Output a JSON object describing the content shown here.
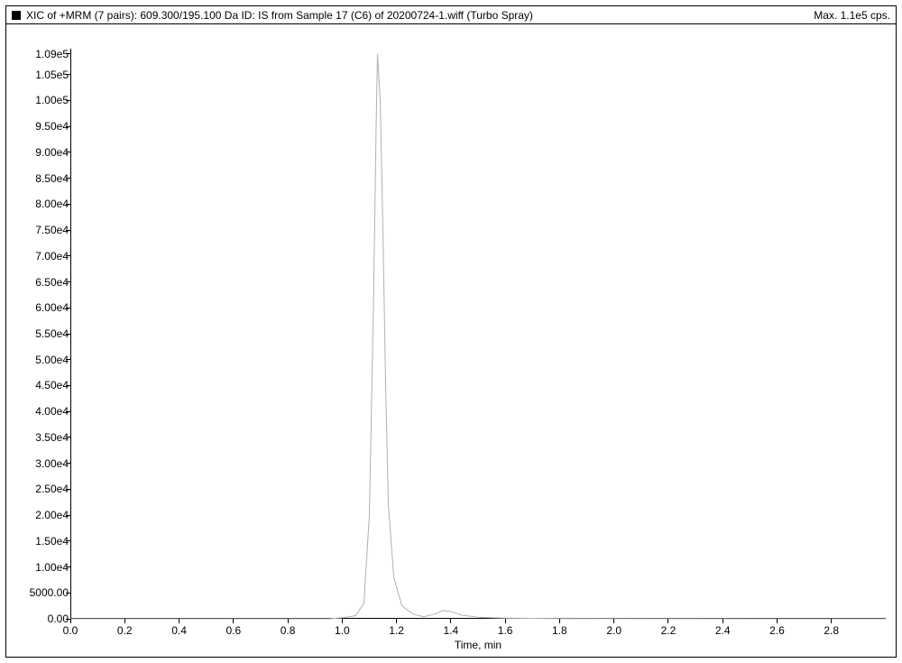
{
  "header": {
    "title": "XIC of +MRM (7 pairs): 609.300/195.100 Da ID: IS from Sample 17 (C6) of 20200724-1.wiff (Turbo Spray)",
    "max_label": "Max. 1.1e5 cps.",
    "legend_color": "#000000"
  },
  "chart": {
    "type": "line",
    "background_color": "#ffffff",
    "border_color": "#000000",
    "axis_color": "#000000",
    "trace_color": "#b0b0b0",
    "trace_width": 1,
    "font_family": "Arial",
    "label_fontsize": 12,
    "title_fontsize": 12,
    "x_axis": {
      "title": "Time, min",
      "min": 0.0,
      "max": 3.0,
      "ticks": [
        0.0,
        0.2,
        0.4,
        0.6,
        0.8,
        1.0,
        1.2,
        1.4,
        1.6,
        1.8,
        2.0,
        2.2,
        2.4,
        2.6,
        2.8
      ],
      "tick_labels": [
        "0.0",
        "0.2",
        "0.4",
        "0.6",
        "0.8",
        "1.0",
        "1.2",
        "1.4",
        "1.6",
        "1.8",
        "2.0",
        "2.2",
        "2.4",
        "2.6",
        "2.8"
      ]
    },
    "y_axis": {
      "title": "",
      "min": 0,
      "max": 110000,
      "ticks": [
        0,
        5000,
        10000,
        15000,
        20000,
        25000,
        30000,
        35000,
        40000,
        45000,
        50000,
        55000,
        60000,
        65000,
        70000,
        75000,
        80000,
        85000,
        90000,
        95000,
        100000,
        105000,
        109000
      ],
      "tick_labels": [
        "0.00",
        "5000.00",
        "1.00e4",
        "1.50e4",
        "2.00e4",
        "2.50e4",
        "3.00e4",
        "3.50e4",
        "4.00e4",
        "4.50e4",
        "5.00e4",
        "5.50e4",
        "6.00e4",
        "6.50e4",
        "7.00e4",
        "7.50e4",
        "8.00e4",
        "8.50e4",
        "9.00e4",
        "9.50e4",
        "1.00e5",
        "1.05e5",
        "1.09e5"
      ]
    },
    "series": [
      {
        "name": "IS",
        "color": "#b0b0b0",
        "points": [
          [
            0.0,
            0
          ],
          [
            0.95,
            0
          ],
          [
            1.0,
            200
          ],
          [
            1.05,
            600
          ],
          [
            1.08,
            3000
          ],
          [
            1.1,
            20000
          ],
          [
            1.115,
            60000
          ],
          [
            1.125,
            95000
          ],
          [
            1.13,
            109000
          ],
          [
            1.14,
            100000
          ],
          [
            1.15,
            75000
          ],
          [
            1.16,
            45000
          ],
          [
            1.17,
            22000
          ],
          [
            1.19,
            8000
          ],
          [
            1.22,
            2500
          ],
          [
            1.26,
            900
          ],
          [
            1.3,
            400
          ],
          [
            1.34,
            900
          ],
          [
            1.37,
            1600
          ],
          [
            1.4,
            1400
          ],
          [
            1.44,
            700
          ],
          [
            1.5,
            300
          ],
          [
            1.6,
            120
          ],
          [
            1.8,
            50
          ],
          [
            2.2,
            20
          ],
          [
            2.6,
            10
          ],
          [
            3.0,
            0
          ]
        ]
      }
    ]
  }
}
